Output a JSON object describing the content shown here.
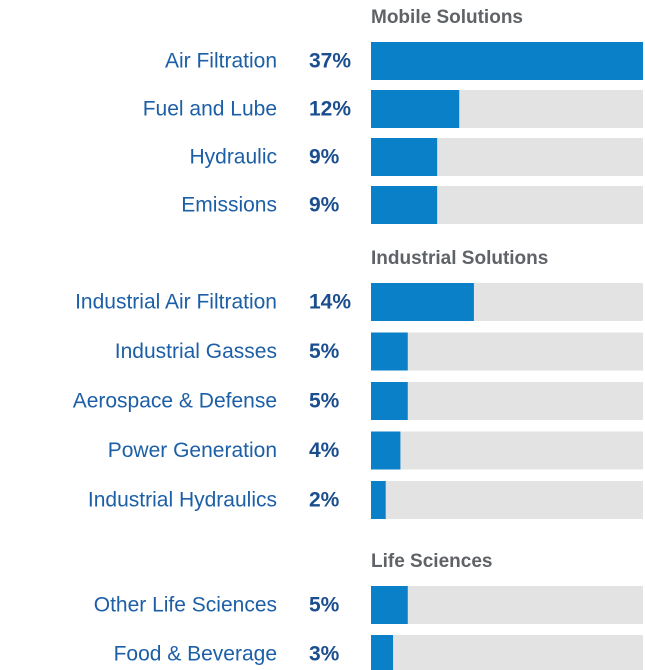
{
  "chart_data": {
    "type": "bar",
    "orientation": "horizontal",
    "color": "#0a80c8",
    "track_color": "#e3e3e3",
    "xlim": [
      0,
      37
    ],
    "groups": [
      {
        "title": "Mobile Solutions",
        "categories": [
          "Air Filtration",
          "Fuel and Lube",
          "Hydraulic",
          "Emissions"
        ],
        "values": [
          37,
          12,
          9,
          9
        ],
        "value_labels": [
          "37%",
          "12%",
          "9%",
          "9%"
        ]
      },
      {
        "title": "Industrial Solutions",
        "categories": [
          "Industrial Air Filtration",
          "Industrial Gasses",
          "Aerospace & Defense",
          "Power Generation",
          "Industrial Hydraulics"
        ],
        "values": [
          14,
          5,
          5,
          4,
          2
        ],
        "value_labels": [
          "14%",
          "5%",
          "5%",
          "4%",
          "2%"
        ]
      },
      {
        "title": "Life Sciences",
        "categories": [
          "Other Life Sciences",
          "Food & Beverage"
        ],
        "values": [
          5,
          3
        ],
        "value_labels": [
          "5%",
          "3%"
        ]
      }
    ]
  }
}
